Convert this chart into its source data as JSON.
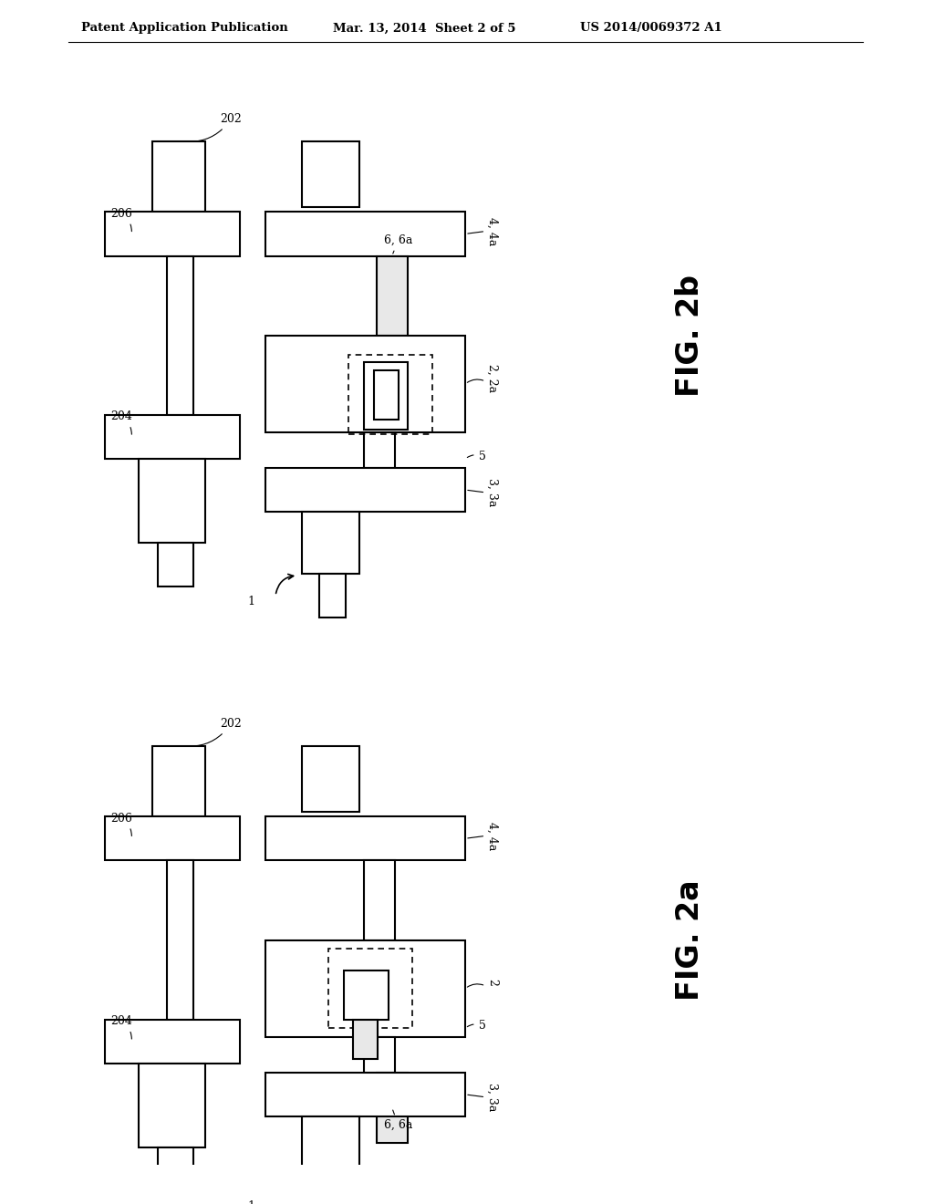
{
  "bg_color": "#ffffff",
  "header_left": "Patent Application Publication",
  "header_mid": "Mar. 13, 2014  Sheet 2 of 5",
  "header_right": "US 2014/0069372 A1",
  "fig2b_label": "FIG. 2b",
  "fig2a_label": "FIG. 2a",
  "line_color": "#000000",
  "line_width": 1.5
}
